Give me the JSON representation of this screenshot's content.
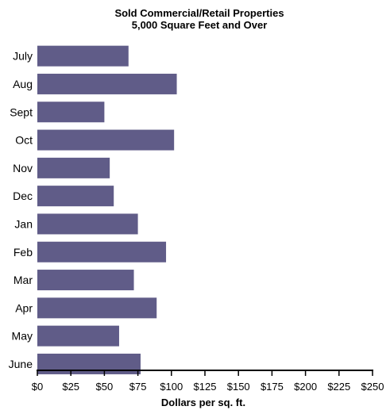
{
  "chart_data": {
    "type": "bar",
    "orientation": "horizontal",
    "title": "Sold Commercial/Retail Properties",
    "subtitle": "5,000 Square Feet and Over",
    "xlabel": "Dollars per sq. ft.",
    "ylabel": "",
    "categories": [
      "July",
      "Aug",
      "Sept",
      "Oct",
      "Nov",
      "Dec",
      "Jan",
      "Feb",
      "Mar",
      "Apr",
      "May",
      "June"
    ],
    "values": [
      68,
      104,
      50,
      102,
      54,
      57,
      75,
      96,
      72,
      89,
      61,
      77
    ],
    "xlim": [
      0,
      250
    ],
    "ticks": [
      0,
      25,
      50,
      75,
      100,
      125,
      150,
      175,
      200,
      225,
      250
    ],
    "tick_labels": [
      "$0",
      "$25",
      "$50",
      "$75",
      "$100",
      "$125",
      "$150",
      "$175",
      "$200",
      "$225",
      "$250"
    ],
    "grid": false,
    "legend": "none",
    "bar_color": "#605c88"
  }
}
